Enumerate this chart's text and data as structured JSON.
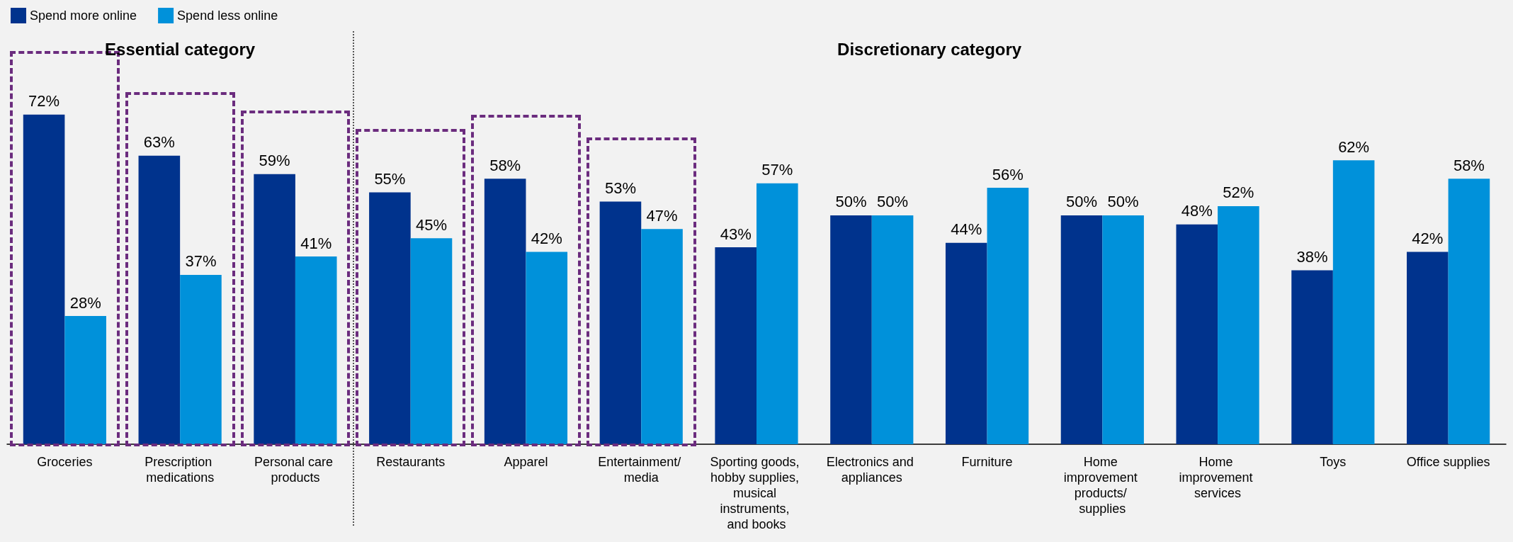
{
  "chart_data": {
    "type": "bar",
    "categories": [
      "Groceries",
      "Prescription medications",
      "Personal care products",
      "Restaurants",
      "Apparel",
      "Entertainment/ media",
      "Sporting goods, hobby supplies, musical instruments, and books",
      "Electronics and appliances",
      "Furniture",
      "Home improvement products/ supplies",
      "Home improvement services",
      "Toys",
      "Office supplies"
    ],
    "series": [
      {
        "name": "Spend more online",
        "color": "#00338d",
        "values": [
          72,
          63,
          59,
          55,
          58,
          53,
          43,
          50,
          44,
          50,
          48,
          38,
          42
        ],
        "value_labels": [
          "72%",
          "63%",
          "59%",
          "55%",
          "58%",
          "53%",
          "43%",
          "50%",
          "44%",
          "50%",
          "48%",
          "38%",
          "42%"
        ]
      },
      {
        "name": "Spend less online",
        "color": "#0091da",
        "values": [
          28,
          37,
          41,
          45,
          42,
          47,
          57,
          50,
          56,
          50,
          52,
          62,
          58
        ],
        "value_labels": [
          "28%",
          "37%",
          "41%",
          "45%",
          "42%",
          "47%",
          "57%",
          "50%",
          "56%",
          "50%",
          "52%",
          "62%",
          "58%"
        ]
      }
    ],
    "annotations": [
      "Essential category",
      "Discretionary category"
    ],
    "legend": "top left"
  }
}
